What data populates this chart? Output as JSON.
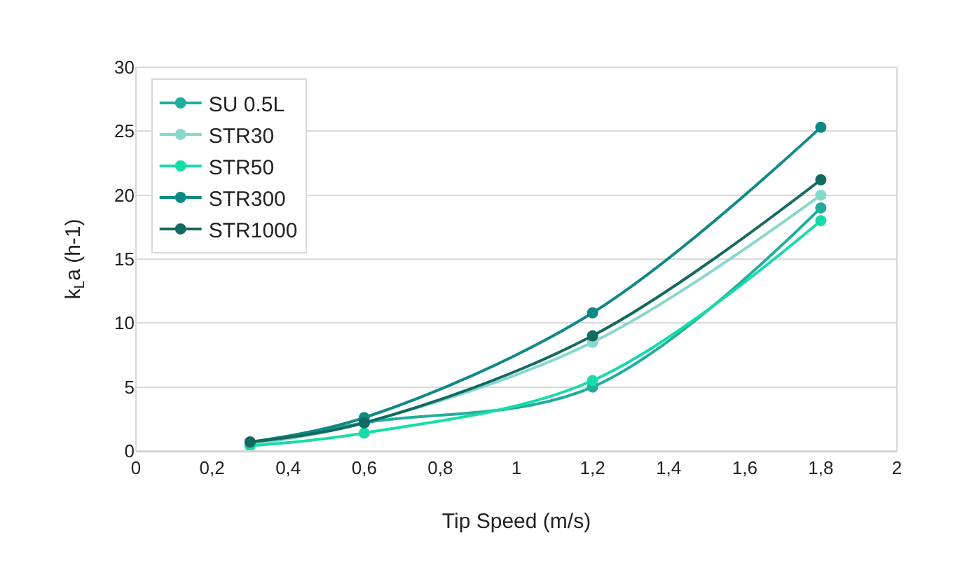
{
  "chart_data": {
    "type": "line",
    "xlabel": "Tip Speed (m/s)",
    "ylabel": "k$_{L}$a (h-1)",
    "x": [
      0.3,
      0.6,
      1.2,
      1.8
    ],
    "series": [
      {
        "name": "SU 0.5L",
        "color": "#1fae9c",
        "values": [
          0.5,
          2.2,
          5.0,
          19.0
        ]
      },
      {
        "name": "STR30",
        "color": "#86d8cc",
        "values": [
          0.5,
          2.2,
          8.5,
          20.0
        ]
      },
      {
        "name": "STR50",
        "color": "#16dca8",
        "values": [
          0.4,
          1.4,
          5.5,
          18.0
        ]
      },
      {
        "name": "STR300",
        "color": "#0e8a86",
        "values": [
          0.7,
          2.6,
          10.8,
          25.3
        ]
      },
      {
        "name": "STR1000",
        "color": "#136a5e",
        "values": [
          0.7,
          2.2,
          9.0,
          21.2
        ]
      }
    ],
    "xlim": [
      0,
      2
    ],
    "xticks": [
      0,
      {
        "value": 0.2,
        "label": "0,2"
      },
      {
        "value": 0.4,
        "label": "0,4"
      },
      {
        "value": 0.6,
        "label": "0,6"
      },
      {
        "value": 0.8,
        "label": "0,8"
      },
      1,
      {
        "value": 1.2,
        "label": "1,2"
      },
      {
        "value": 1.4,
        "label": "1,4"
      },
      {
        "value": 1.6,
        "label": "1,6"
      },
      {
        "value": 1.8,
        "label": "1,8"
      },
      2
    ],
    "ylim": [
      0,
      30
    ],
    "yticks": [
      0,
      5,
      10,
      15,
      20,
      25,
      30
    ],
    "grid": "y",
    "legend": "top left",
    "marker": "circle",
    "line_style": "solid"
  }
}
